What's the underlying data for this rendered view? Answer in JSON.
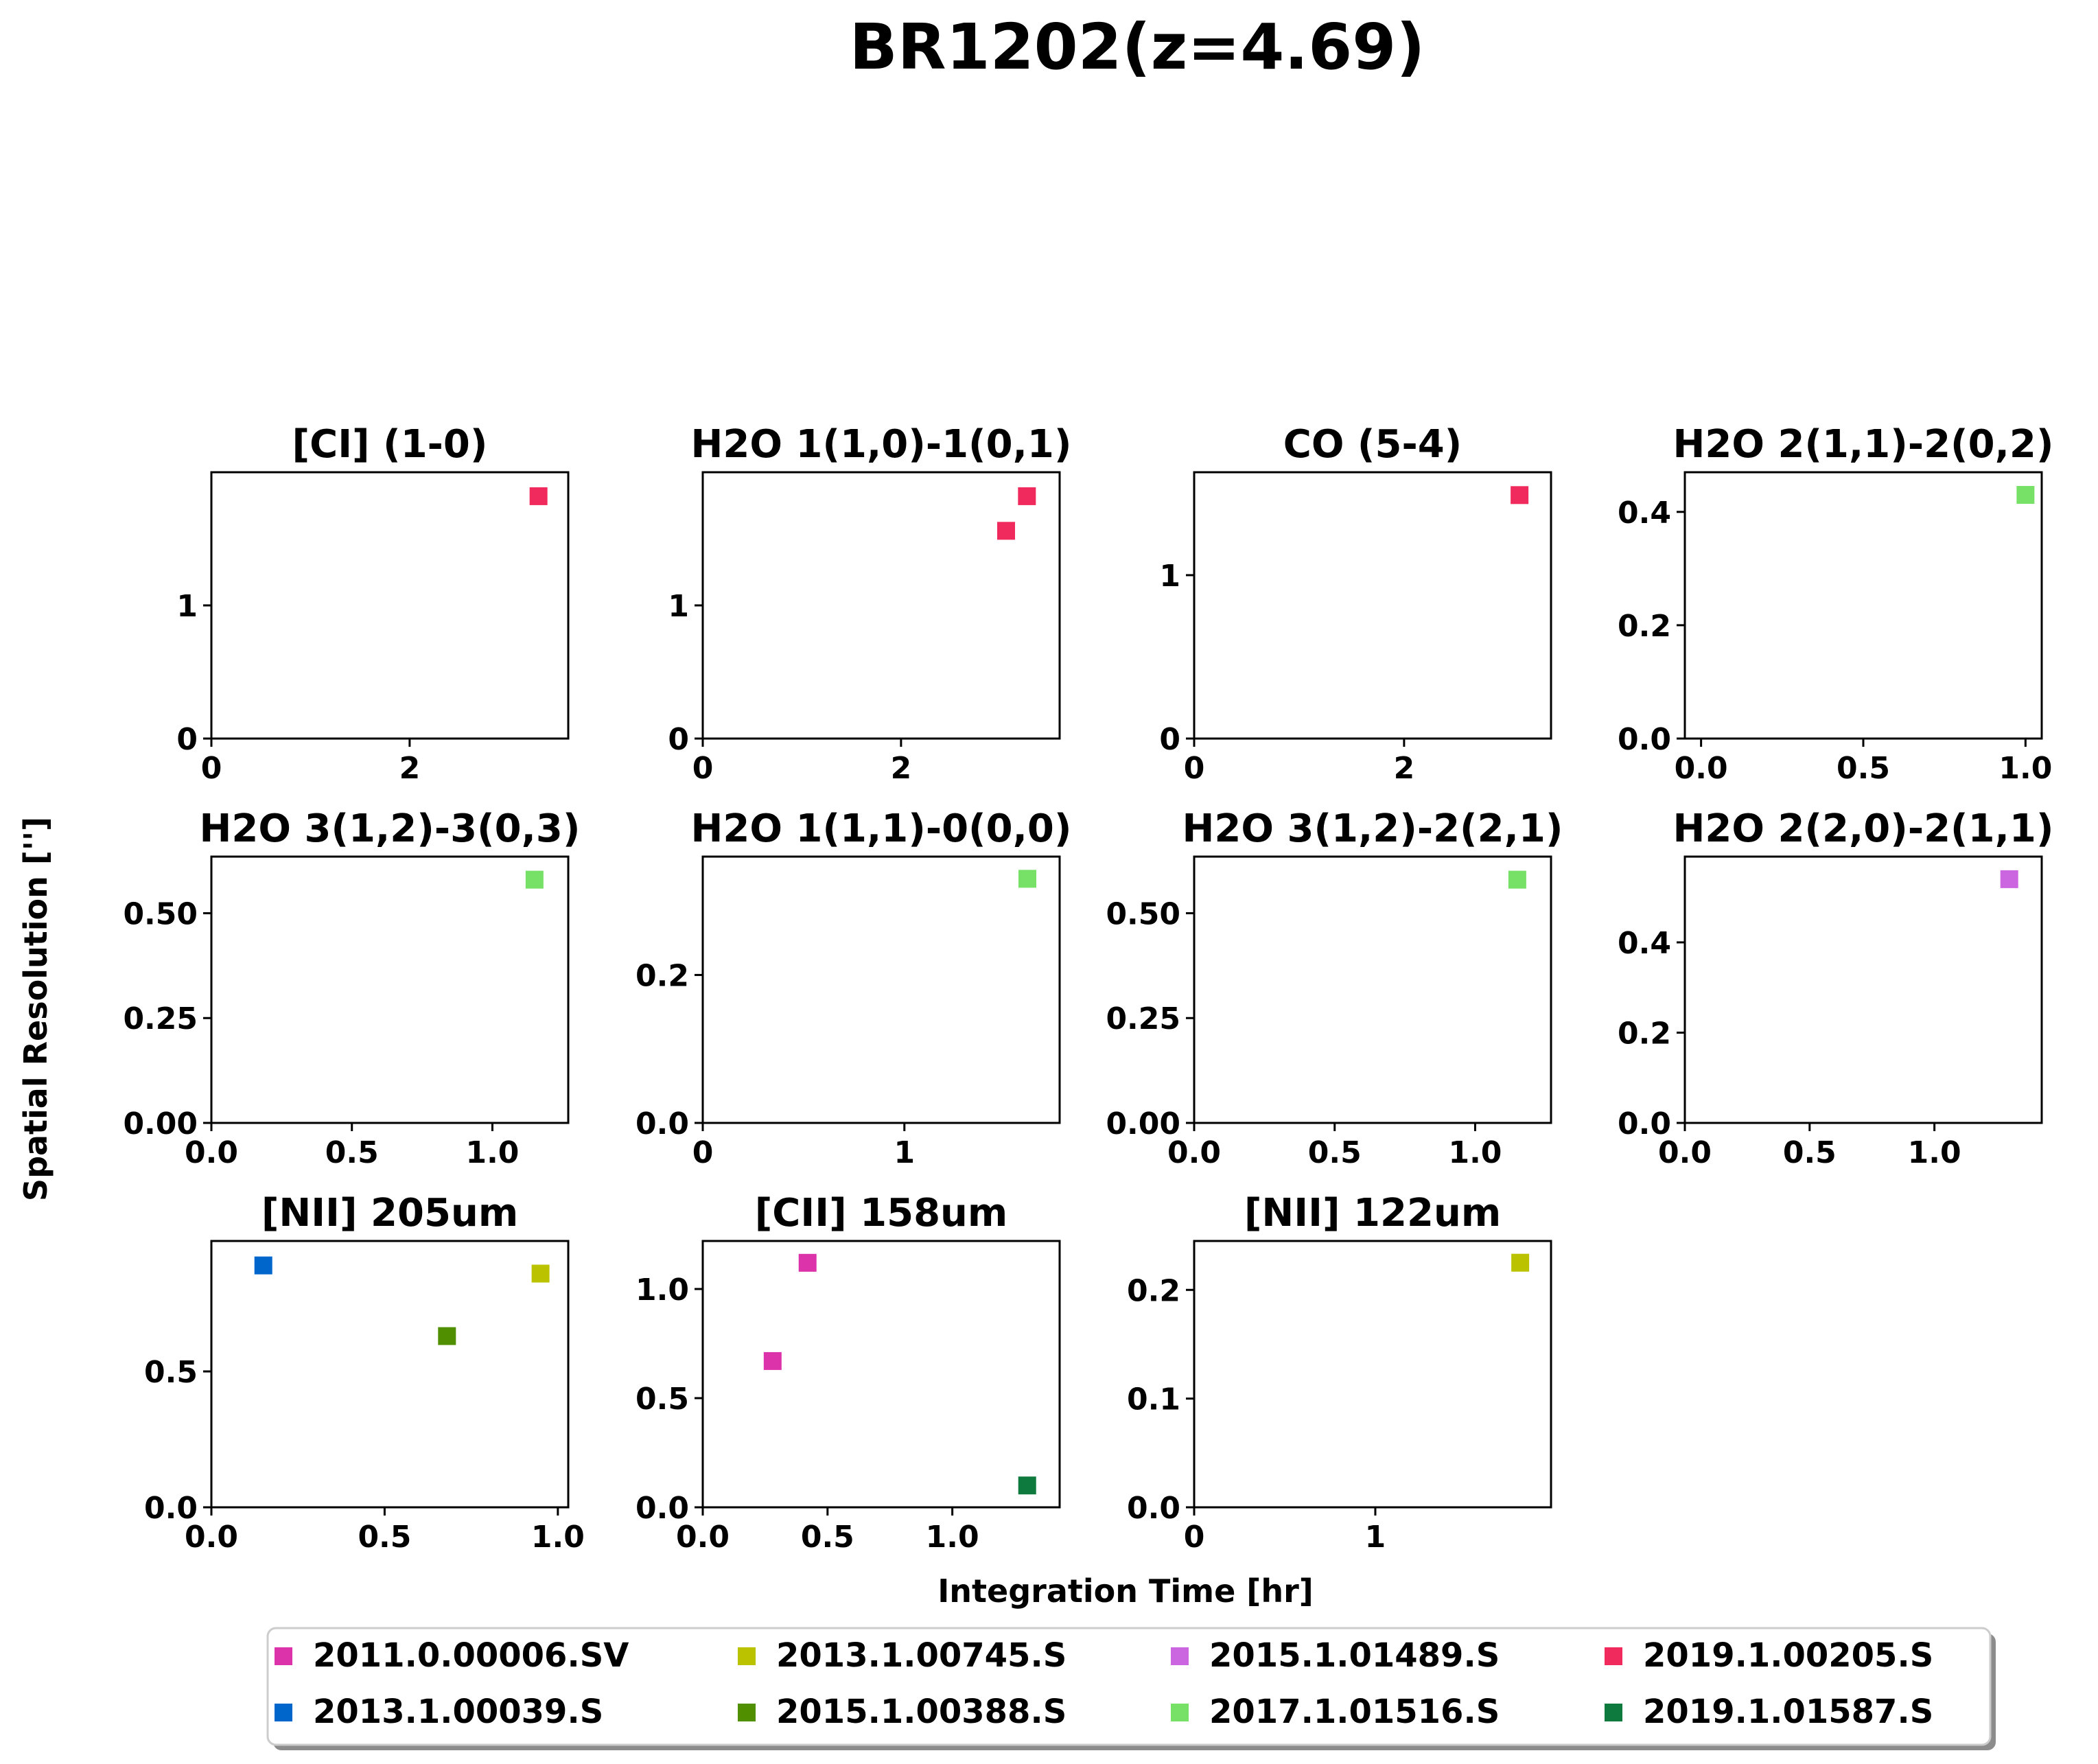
{
  "figure": {
    "title": "BR1202(z=4.69)",
    "xlabel": "Integration Time [hr]",
    "ylabel": "Spatial Resolution ['']"
  },
  "legend": {
    "placement": "bottom-center",
    "entries": [
      {
        "label": "2011.0.00006.SV",
        "color": "#dd33aa"
      },
      {
        "label": "2013.1.00039.S",
        "color": "#0066cc"
      },
      {
        "label": "2013.1.00745.S",
        "color": "#bbc200"
      },
      {
        "label": "2015.1.00388.S",
        "color": "#4f8f00"
      },
      {
        "label": "2015.1.01489.S",
        "color": "#cc66e0"
      },
      {
        "label": "2017.1.01516.S",
        "color": "#77e066"
      },
      {
        "label": "2019.1.00205.S",
        "color": "#f02a5c"
      },
      {
        "label": "2019.1.01587.S",
        "color": "#0f7a3d"
      }
    ]
  },
  "chart_data": [
    {
      "type": "scatter",
      "title": "[CI] (1-0)",
      "xlim": [
        0,
        3.6
      ],
      "ylim": [
        0,
        2.0
      ],
      "xticks": [
        {
          "v": 0,
          "label": "0"
        },
        {
          "v": 2,
          "label": "2"
        }
      ],
      "yticks": [
        {
          "v": 0,
          "label": "0"
        },
        {
          "v": 1,
          "label": "1"
        }
      ],
      "points": [
        {
          "x": 3.3,
          "y": 1.82,
          "series": "2019.1.00205.S"
        }
      ]
    },
    {
      "type": "scatter",
      "title": "H2O 1(1,0)-1(0,1)",
      "xlim": [
        0,
        3.6
      ],
      "ylim": [
        0,
        2.0
      ],
      "xticks": [
        {
          "v": 0,
          "label": "0"
        },
        {
          "v": 2,
          "label": "2"
        }
      ],
      "yticks": [
        {
          "v": 0,
          "label": "0"
        },
        {
          "v": 1,
          "label": "1"
        }
      ],
      "points": [
        {
          "x": 3.27,
          "y": 1.82,
          "series": "2019.1.00205.S"
        },
        {
          "x": 3.06,
          "y": 1.56,
          "series": "2019.1.00205.S"
        }
      ]
    },
    {
      "type": "scatter",
      "title": "CO (5-4)",
      "xlim": [
        0,
        3.4
      ],
      "ylim": [
        0,
        1.63
      ],
      "xticks": [
        {
          "v": 0,
          "label": "0"
        },
        {
          "v": 2,
          "label": "2"
        }
      ],
      "yticks": [
        {
          "v": 0,
          "label": "0"
        },
        {
          "v": 1,
          "label": "1"
        }
      ],
      "points": [
        {
          "x": 3.1,
          "y": 1.49,
          "series": "2019.1.00205.S"
        }
      ]
    },
    {
      "type": "scatter",
      "title": "H2O 2(1,1)-2(0,2)",
      "xlim": [
        -0.05,
        1.05
      ],
      "ylim": [
        0,
        0.47
      ],
      "xticks": [
        {
          "v": 0,
          "label": "0.0"
        },
        {
          "v": 0.5,
          "label": "0.5"
        },
        {
          "v": 1,
          "label": "1.0"
        }
      ],
      "yticks": [
        {
          "v": 0,
          "label": "0.0"
        },
        {
          "v": 0.2,
          "label": "0.2"
        },
        {
          "v": 0.4,
          "label": "0.4"
        }
      ],
      "points": [
        {
          "x": 1.0,
          "y": 0.43,
          "series": "2017.1.01516.S"
        }
      ]
    },
    {
      "type": "scatter",
      "title": "H2O 3(1,2)-3(0,3)",
      "xlim": [
        0,
        1.27
      ],
      "ylim": [
        0,
        0.635
      ],
      "xticks": [
        {
          "v": 0,
          "label": "0.0"
        },
        {
          "v": 0.5,
          "label": "0.5"
        },
        {
          "v": 1,
          "label": "1.0"
        }
      ],
      "yticks": [
        {
          "v": 0,
          "label": "0.00"
        },
        {
          "v": 0.25,
          "label": "0.25"
        },
        {
          "v": 0.5,
          "label": "0.50"
        }
      ],
      "points": [
        {
          "x": 1.15,
          "y": 0.58,
          "series": "2017.1.01516.S"
        }
      ]
    },
    {
      "type": "scatter",
      "title": "H2O 1(1,1)-0(0,0)",
      "xlim": [
        0,
        1.77
      ],
      "ylim": [
        0,
        0.36
      ],
      "xticks": [
        {
          "v": 0,
          "label": "0"
        },
        {
          "v": 1,
          "label": "1"
        }
      ],
      "yticks": [
        {
          "v": 0,
          "label": "0.0"
        },
        {
          "v": 0.2,
          "label": "0.2"
        }
      ],
      "points": [
        {
          "x": 1.61,
          "y": 0.33,
          "series": "2017.1.01516.S"
        }
      ]
    },
    {
      "type": "scatter",
      "title": "H2O 3(1,2)-2(2,1)",
      "xlim": [
        0,
        1.27
      ],
      "ylim": [
        0,
        0.635
      ],
      "xticks": [
        {
          "v": 0,
          "label": "0.0"
        },
        {
          "v": 0.5,
          "label": "0.5"
        },
        {
          "v": 1,
          "label": "1.0"
        }
      ],
      "yticks": [
        {
          "v": 0,
          "label": "0.00"
        },
        {
          "v": 0.25,
          "label": "0.25"
        },
        {
          "v": 0.5,
          "label": "0.50"
        }
      ],
      "points": [
        {
          "x": 1.15,
          "y": 0.58,
          "series": "2017.1.01516.S"
        }
      ]
    },
    {
      "type": "scatter",
      "title": "H2O 2(2,0)-2(1,1)",
      "xlim": [
        0,
        1.43
      ],
      "ylim": [
        0,
        0.59
      ],
      "xticks": [
        {
          "v": 0,
          "label": "0.0"
        },
        {
          "v": 0.5,
          "label": "0.5"
        },
        {
          "v": 1,
          "label": "1.0"
        }
      ],
      "yticks": [
        {
          "v": 0,
          "label": "0.0"
        },
        {
          "v": 0.2,
          "label": "0.2"
        },
        {
          "v": 0.4,
          "label": "0.4"
        }
      ],
      "points": [
        {
          "x": 1.3,
          "y": 0.54,
          "series": "2015.1.01489.S"
        }
      ]
    },
    {
      "type": "scatter",
      "title": "[NII] 205um",
      "xlim": [
        0,
        1.03
      ],
      "ylim": [
        0,
        0.98
      ],
      "xticks": [
        {
          "v": 0,
          "label": "0.0"
        },
        {
          "v": 0.5,
          "label": "0.5"
        },
        {
          "v": 1,
          "label": "1.0"
        }
      ],
      "yticks": [
        {
          "v": 0,
          "label": "0.0"
        },
        {
          "v": 0.5,
          "label": "0.5"
        }
      ],
      "points": [
        {
          "x": 0.15,
          "y": 0.89,
          "series": "2013.1.00039.S"
        },
        {
          "x": 0.95,
          "y": 0.86,
          "series": "2013.1.00745.S"
        },
        {
          "x": 0.68,
          "y": 0.63,
          "series": "2015.1.00388.S"
        }
      ]
    },
    {
      "type": "scatter",
      "title": "[CII] 158um",
      "xlim": [
        0,
        1.43
      ],
      "ylim": [
        0,
        1.22
      ],
      "xticks": [
        {
          "v": 0,
          "label": "0.0"
        },
        {
          "v": 0.5,
          "label": "0.5"
        },
        {
          "v": 1,
          "label": "1.0"
        }
      ],
      "yticks": [
        {
          "v": 0,
          "label": "0.0"
        },
        {
          "v": 0.5,
          "label": "0.5"
        },
        {
          "v": 1,
          "label": "1.0"
        }
      ],
      "points": [
        {
          "x": 0.42,
          "y": 1.12,
          "series": "2011.0.00006.SV"
        },
        {
          "x": 0.28,
          "y": 0.67,
          "series": "2011.0.00006.SV"
        },
        {
          "x": 1.3,
          "y": 0.1,
          "series": "2019.1.01587.S"
        }
      ]
    },
    {
      "type": "scatter",
      "title": "[NII] 122um",
      "xlim": [
        0,
        1.97
      ],
      "ylim": [
        0,
        0.245
      ],
      "xticks": [
        {
          "v": 0,
          "label": "0"
        },
        {
          "v": 1,
          "label": "1"
        }
      ],
      "yticks": [
        {
          "v": 0,
          "label": "0.0"
        },
        {
          "v": 0.1,
          "label": "0.1"
        },
        {
          "v": 0.2,
          "label": "0.2"
        }
      ],
      "points": [
        {
          "x": 1.8,
          "y": 0.225,
          "series": "2013.1.00745.S"
        }
      ]
    }
  ]
}
